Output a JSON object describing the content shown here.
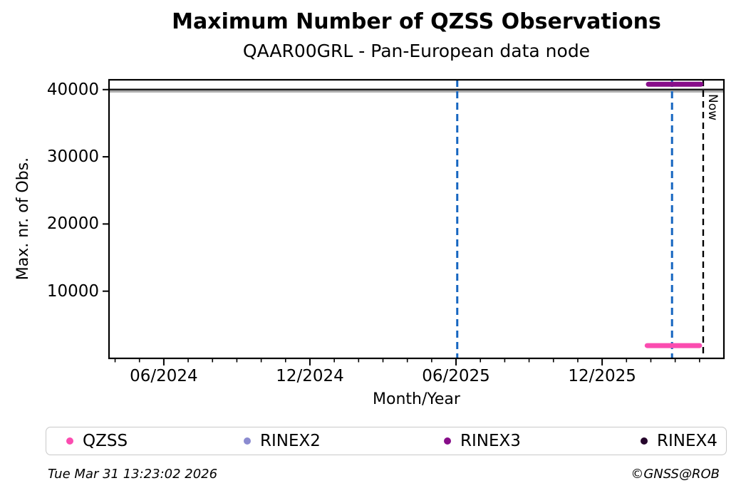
{
  "header": {
    "title": "Maximum Number of QZSS Observations",
    "subtitle": "QAAR00GRL - Pan-European data node"
  },
  "chart_data": {
    "type": "line",
    "title": "Maximum Number of QZSS Observations",
    "subtitle": "QAAR00GRL - Pan-European data node",
    "xlabel": "Month/Year",
    "ylabel": "Max. nr. of Obs.",
    "grid": false,
    "x_unit": "months since 2024-01-01",
    "xlim": [
      2.75,
      28.0
    ],
    "ylim": [
      0,
      41460
    ],
    "x_ticks": [
      {
        "pos": 5,
        "label": "06/2024"
      },
      {
        "pos": 11,
        "label": "12/2024"
      },
      {
        "pos": 17,
        "label": "06/2025"
      },
      {
        "pos": 23,
        "label": "12/2025"
      }
    ],
    "x_minor_tick_every_months": 1,
    "y_ticks": [
      {
        "value": 10000,
        "label": "10000"
      },
      {
        "value": 20000,
        "label": "20000"
      },
      {
        "value": 30000,
        "label": "30000"
      },
      {
        "value": 40000,
        "label": "40000"
      }
    ],
    "series": [
      {
        "name": "QZSS",
        "color": "#fb4cb0",
        "segments": [
          {
            "x_start": 24.85,
            "x_end": 27.0,
            "value": 1900
          }
        ]
      },
      {
        "name": "RINEX2",
        "color": "#8b8bd0",
        "segments": []
      },
      {
        "name": "RINEX3",
        "color": "#870d89",
        "segments": [
          {
            "x_start": 24.9,
            "x_end": 27.05,
            "value": 40800
          }
        ]
      },
      {
        "name": "RINEX4",
        "color": "#26062c",
        "segments": []
      }
    ],
    "reference_lines": [
      {
        "value": 40000,
        "color": "#1a1a1a",
        "width": 2.6
      },
      {
        "value": 39680,
        "color": "#9e9e9e",
        "width": 2.0
      }
    ],
    "event_lines": [
      {
        "pos": 17.05,
        "color": "#1565c0",
        "style": "dashed",
        "width": 3
      },
      {
        "pos": 25.87,
        "color": "#1565c0",
        "style": "dashed",
        "width": 3
      }
    ],
    "now_line": {
      "pos": 27.15,
      "label": "Now",
      "color": "#000000",
      "style": "dashed",
      "width": 2.4
    },
    "legend_position": "bottom"
  },
  "legend": {
    "items": [
      {
        "label": "QZSS",
        "color": "#fb4cb0"
      },
      {
        "label": "RINEX2",
        "color": "#8b8bd0"
      },
      {
        "label": "RINEX3",
        "color": "#870d89"
      },
      {
        "label": "RINEX4",
        "color": "#26062c"
      }
    ]
  },
  "footer": {
    "timestamp": "Tue Mar 31 13:23:02 2026",
    "credit": "©GNSS@ROB"
  }
}
